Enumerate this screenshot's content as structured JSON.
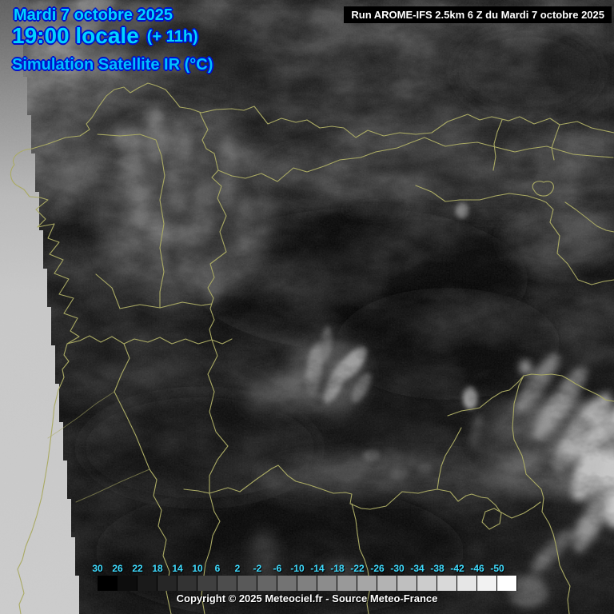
{
  "header": {
    "date": "Mardi 7 octobre 2025",
    "time": "19:00 locale",
    "offset": "(+ 11h)",
    "subtitle": "Simulation Satellite IR (°C)"
  },
  "run_bar": {
    "text": "Run AROME-IFS 2.5km 6 Z du Mardi 7 octobre 2025"
  },
  "legend": {
    "unit_values": [
      "30",
      "26",
      "22",
      "18",
      "14",
      "10",
      "6",
      "2",
      "-2",
      "-6",
      "-10",
      "-14",
      "-18",
      "-22",
      "-26",
      "-30",
      "-34",
      "-38",
      "-42",
      "-46",
      "-50"
    ],
    "gradient_start": "#000000",
    "gradient_end": "#ffffff"
  },
  "footer": {
    "copyright": "Copyright © 2025 Meteociel.fr - Source Meteo-France"
  },
  "colors": {
    "title_cyan": "#00d4ff",
    "subtitle_blue": "#00bfff",
    "text_outline_blue": "#0011cc",
    "legend_label_cyan": "#3fdcff",
    "border_olive": "#a8a860",
    "nodata_gray": "#c9c9c9",
    "run_text": "#ffffff"
  }
}
